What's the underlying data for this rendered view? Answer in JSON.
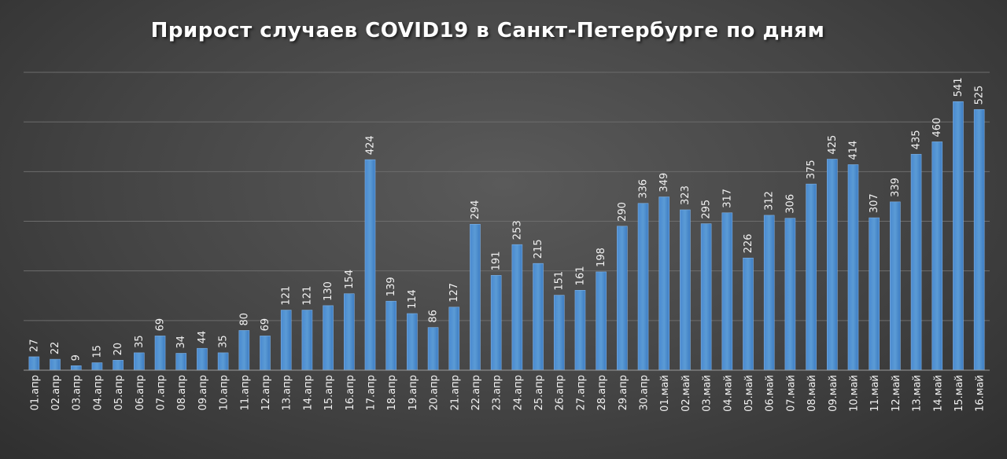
{
  "chart_data": {
    "type": "bar",
    "title": "Прирост случаев COVID19 в Санкт-Петербурге по дням",
    "xlabel": "",
    "ylabel": "",
    "ylim": [
      0,
      600
    ],
    "grid": true,
    "legend": "none",
    "bar_color": "#5b9bd5",
    "categories": [
      "01.апр",
      "02.апр",
      "03.апр",
      "04.апр",
      "05.апр",
      "06.апр",
      "07.апр",
      "08.апр",
      "09.апр",
      "10.апр",
      "11.апр",
      "12.апр",
      "13.апр",
      "14.апр",
      "15.апр",
      "16.апр",
      "17.апр",
      "18.апр",
      "19.апр",
      "20.апр",
      "21.апр",
      "22.апр",
      "23.апр",
      "24.апр",
      "25.апр",
      "26.апр",
      "27.апр",
      "28.апр",
      "29.апр",
      "30.апр",
      "01.май",
      "02.май",
      "03.май",
      "04.май",
      "05.май",
      "06.май",
      "07.май",
      "08.май",
      "09.май",
      "10.май",
      "11.май",
      "12.май",
      "13.май",
      "14.май",
      "15.май",
      "16.май"
    ],
    "values": [
      27,
      22,
      9,
      15,
      20,
      35,
      69,
      34,
      44,
      35,
      80,
      69,
      121,
      121,
      130,
      154,
      424,
      139,
      114,
      86,
      127,
      294,
      191,
      253,
      215,
      151,
      161,
      198,
      290,
      336,
      349,
      323,
      295,
      317,
      226,
      312,
      306,
      375,
      425,
      414,
      307,
      339,
      435,
      460,
      541,
      525
    ]
  }
}
